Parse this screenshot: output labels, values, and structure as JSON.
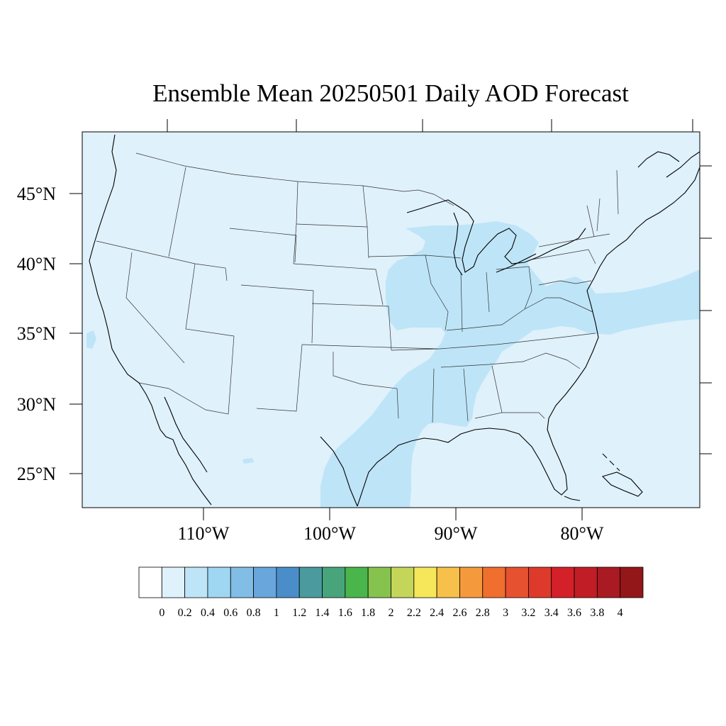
{
  "title": "Ensemble Mean 20250501 Daily AOD Forecast",
  "map": {
    "lat_labels": [
      "45°N",
      "40°N",
      "35°N",
      "30°N",
      "25°N"
    ],
    "lon_labels": [
      "110°W",
      "100°W",
      "90°W",
      "80°W"
    ],
    "background_color": "#dff1fb",
    "plume_color": "#bee4f7",
    "border_color": "#333333",
    "coast_color": "#000000"
  },
  "colorbar": {
    "labels": [
      "0",
      "0.2",
      "0.4",
      "0.6",
      "0.8",
      "1",
      "1.2",
      "1.4",
      "1.6",
      "1.8",
      "2",
      "2.2",
      "2.4",
      "2.6",
      "2.8",
      "3",
      "3.2",
      "3.4",
      "3.6",
      "3.8",
      "4"
    ],
    "colors": [
      "#ffffff",
      "#dff1fb",
      "#bee4f7",
      "#9fd6f2",
      "#82bde6",
      "#68a6dc",
      "#4a8ec9",
      "#4a9a9e",
      "#48a47a",
      "#4ab54a",
      "#86c34e",
      "#c3d65a",
      "#f6e65a",
      "#f7c04a",
      "#f59a3c",
      "#f06e2e",
      "#e65130",
      "#de3a2b",
      "#d42029",
      "#c01d26",
      "#aa1a22",
      "#931619"
    ]
  }
}
